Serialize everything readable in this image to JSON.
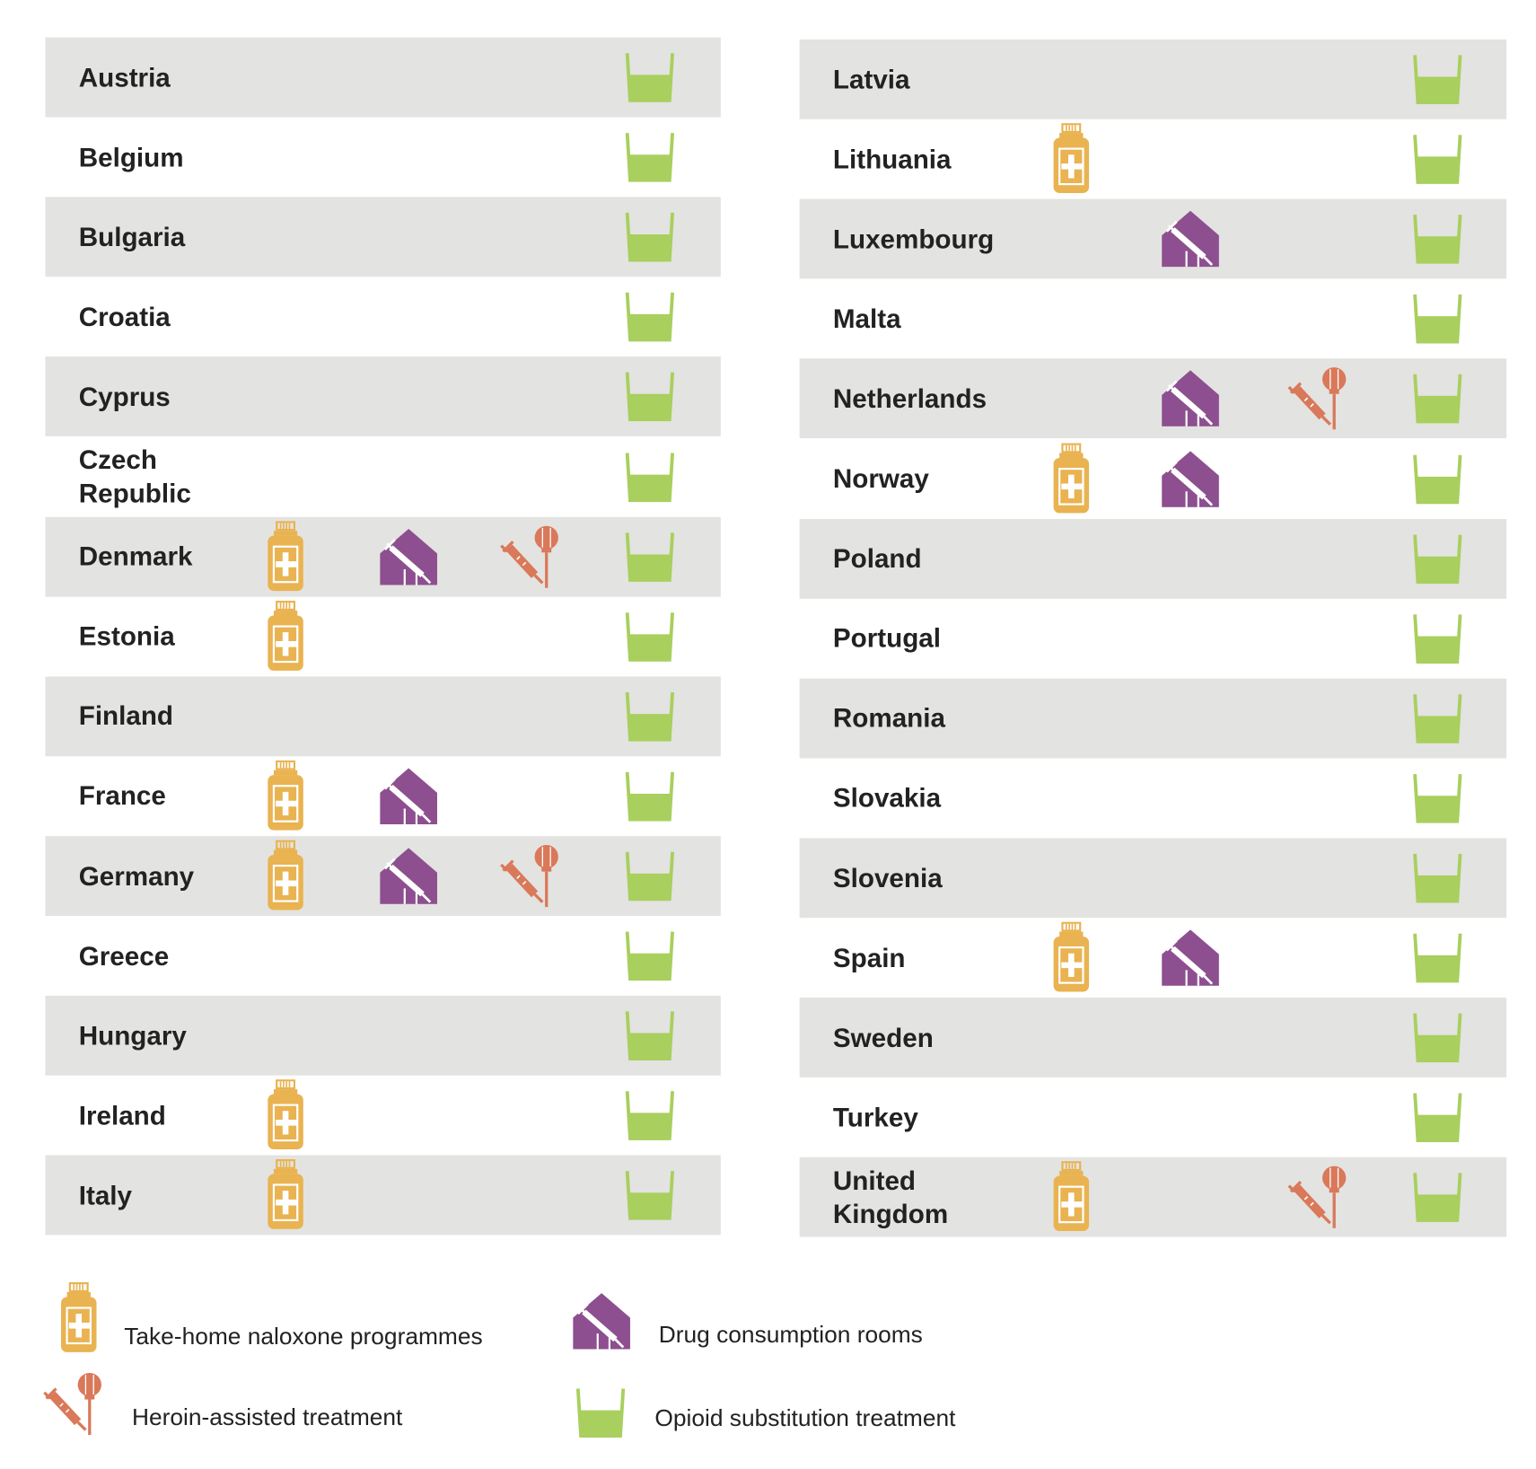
{
  "legend": {
    "naloxone": "Take-home naloxone programmes",
    "consumption_rooms": "Drug consumption rooms",
    "heroin": "Heroin-assisted treatment",
    "ost": "Opioid substitution treatment"
  },
  "tables": [
    {
      "rows": [
        {
          "name": "Austria",
          "naloxone": false,
          "consumption_rooms": false,
          "heroin": false,
          "ost": true
        },
        {
          "name": "Belgium",
          "naloxone": false,
          "consumption_rooms": false,
          "heroin": false,
          "ost": true
        },
        {
          "name": "Bulgaria",
          "naloxone": false,
          "consumption_rooms": false,
          "heroin": false,
          "ost": true
        },
        {
          "name": "Croatia",
          "naloxone": false,
          "consumption_rooms": false,
          "heroin": false,
          "ost": true
        },
        {
          "name": "Cyprus",
          "naloxone": false,
          "consumption_rooms": false,
          "heroin": false,
          "ost": true
        },
        {
          "name": "Czech Republic",
          "naloxone": false,
          "consumption_rooms": false,
          "heroin": false,
          "ost": true
        },
        {
          "name": "Denmark",
          "naloxone": true,
          "consumption_rooms": true,
          "heroin": true,
          "ost": true
        },
        {
          "name": "Estonia",
          "naloxone": true,
          "consumption_rooms": false,
          "heroin": false,
          "ost": true
        },
        {
          "name": "Finland",
          "naloxone": false,
          "consumption_rooms": false,
          "heroin": false,
          "ost": true
        },
        {
          "name": "France",
          "naloxone": true,
          "consumption_rooms": true,
          "heroin": false,
          "ost": true
        },
        {
          "name": "Germany",
          "naloxone": true,
          "consumption_rooms": true,
          "heroin": true,
          "ost": true
        },
        {
          "name": "Greece",
          "naloxone": false,
          "consumption_rooms": false,
          "heroin": false,
          "ost": true
        },
        {
          "name": "Hungary",
          "naloxone": false,
          "consumption_rooms": false,
          "heroin": false,
          "ost": true
        },
        {
          "name": "Ireland",
          "naloxone": true,
          "consumption_rooms": false,
          "heroin": false,
          "ost": true
        },
        {
          "name": "Italy",
          "naloxone": true,
          "consumption_rooms": false,
          "heroin": false,
          "ost": true
        }
      ]
    },
    {
      "rows": [
        {
          "name": "Latvia",
          "naloxone": false,
          "consumption_rooms": false,
          "heroin": false,
          "ost": true
        },
        {
          "name": "Lithuania",
          "naloxone": true,
          "consumption_rooms": false,
          "heroin": false,
          "ost": true
        },
        {
          "name": "Luxembourg",
          "naloxone": false,
          "consumption_rooms": true,
          "heroin": false,
          "ost": true
        },
        {
          "name": "Malta",
          "naloxone": false,
          "consumption_rooms": false,
          "heroin": false,
          "ost": true
        },
        {
          "name": "Netherlands",
          "naloxone": false,
          "consumption_rooms": true,
          "heroin": true,
          "ost": true
        },
        {
          "name": "Norway",
          "naloxone": true,
          "consumption_rooms": true,
          "heroin": false,
          "ost": true
        },
        {
          "name": "Poland",
          "naloxone": false,
          "consumption_rooms": false,
          "heroin": false,
          "ost": true
        },
        {
          "name": "Portugal",
          "naloxone": false,
          "consumption_rooms": false,
          "heroin": false,
          "ost": true
        },
        {
          "name": "Romania",
          "naloxone": false,
          "consumption_rooms": false,
          "heroin": false,
          "ost": true
        },
        {
          "name": "Slovakia",
          "naloxone": false,
          "consumption_rooms": false,
          "heroin": false,
          "ost": true
        },
        {
          "name": "Slovenia",
          "naloxone": false,
          "consumption_rooms": false,
          "heroin": false,
          "ost": true
        },
        {
          "name": "Spain",
          "naloxone": true,
          "consumption_rooms": true,
          "heroin": false,
          "ost": true
        },
        {
          "name": "Sweden",
          "naloxone": false,
          "consumption_rooms": false,
          "heroin": false,
          "ost": true
        },
        {
          "name": "Turkey",
          "naloxone": false,
          "consumption_rooms": false,
          "heroin": false,
          "ost": true
        },
        {
          "name": "United Kingdom",
          "naloxone": true,
          "consumption_rooms": false,
          "heroin": true,
          "ost": true
        }
      ]
    }
  ]
}
